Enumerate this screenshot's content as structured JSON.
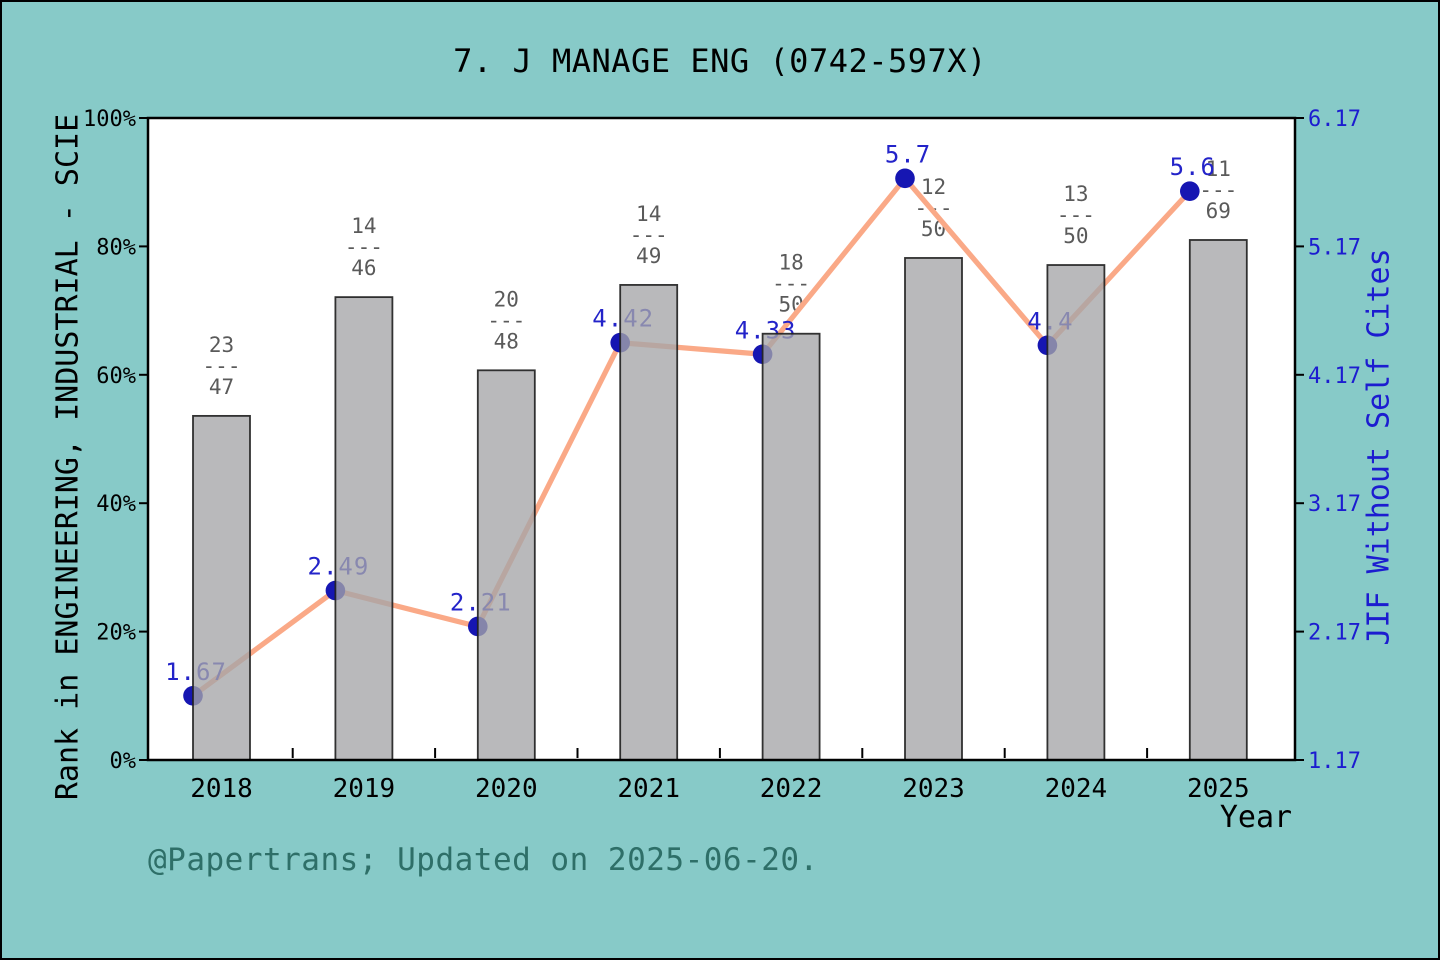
{
  "title": "7. J MANAGE ENG (0742-597X)",
  "footer": "@Papertrans; Updated on 2025-06-20.",
  "chart_data": {
    "type": "bar+line dual-axis",
    "categories": [
      "2018",
      "2019",
      "2020",
      "2021",
      "2022",
      "2023",
      "2024",
      "2025"
    ],
    "series": [
      {
        "name": "Rank in ENGINEERING, INDUSTRIAL - SCIE (bars, left % axis)",
        "type": "bar",
        "values_pct": [
          53.6,
          72.1,
          60.7,
          74.0,
          66.4,
          78.2,
          77.1,
          81.0
        ],
        "rank_fractions": [
          {
            "num": "23",
            "den": "47"
          },
          {
            "num": "14",
            "den": "46"
          },
          {
            "num": "20",
            "den": "48"
          },
          {
            "num": "14",
            "den": "49"
          },
          {
            "num": "18",
            "den": "50"
          },
          {
            "num": "12",
            "den": "50"
          },
          {
            "num": "13",
            "den": "50"
          },
          {
            "num": "11",
            "den": "69"
          }
        ]
      },
      {
        "name": "JIF Without Self Cites (line, right axis)",
        "type": "line",
        "values": [
          1.67,
          2.49,
          2.21,
          4.42,
          4.33,
          5.7,
          4.4,
          5.6
        ],
        "point_labels": [
          "1.67",
          "2.49",
          "2.21",
          "4.42",
          "4.33",
          "5.7",
          "4.4",
          "5.6"
        ]
      }
    ],
    "left_axis": {
      "label": "Rank in ENGINEERING, INDUSTRIAL - SCIE",
      "tick_labels": [
        "0%",
        "20%",
        "40%",
        "60%",
        "80%",
        "100%"
      ],
      "range": [
        0,
        100
      ]
    },
    "right_axis": {
      "label": "JIF Without Self Cites",
      "tick_labels": [
        "1.17",
        "2.17",
        "3.17",
        "4.17",
        "5.17",
        "6.17"
      ],
      "range": [
        1.17,
        6.17
      ]
    },
    "x_axis": {
      "label": "Year",
      "tick_labels": [
        "2018",
        "2019",
        "2020",
        "2021",
        "2022",
        "2023",
        "2024",
        "2025"
      ]
    },
    "legend": "none",
    "grid": "off",
    "styles": {
      "background": "#87cac8",
      "plot_background": "#ffffff",
      "bar_fill": "#bdbdbd",
      "bar_border": "#222222",
      "line_color": "#faa987",
      "marker_color": "#1616b2",
      "value_label_color": "#2323c9",
      "right_axis_color": "#1c1cd0",
      "fraction_color": "#5a5a5a",
      "axis_color": "#000000",
      "footer_color": "#2e6f68"
    }
  }
}
